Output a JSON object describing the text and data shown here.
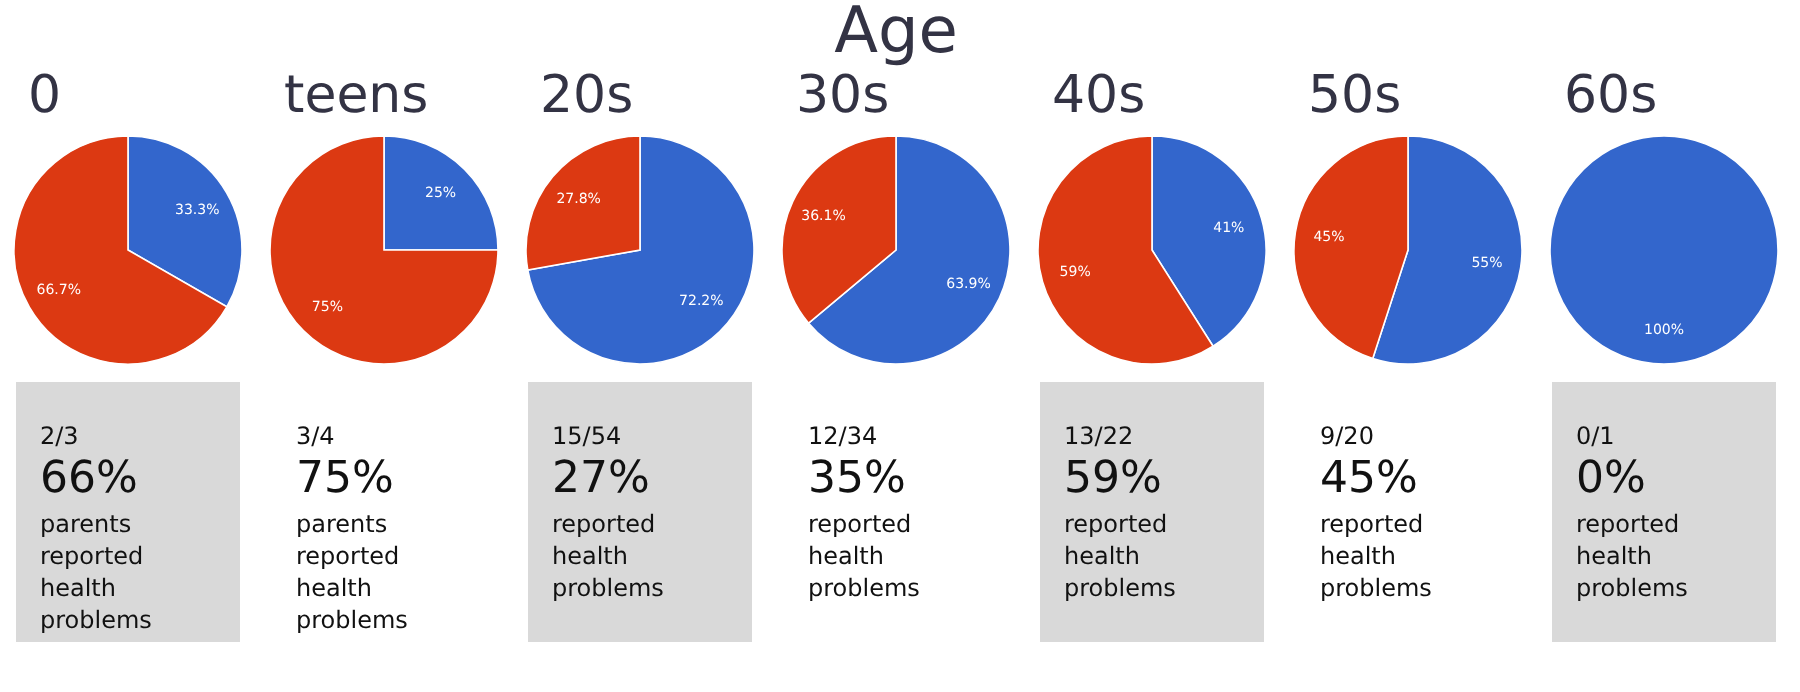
{
  "chart_data": [
    {
      "type": "other",
      "title": "Age"
    },
    {
      "type": "pie",
      "title": "0",
      "categories": [
        null,
        null
      ],
      "values": [
        33.3,
        66.7
      ],
      "colors": [
        "#3366cc",
        "#dc3912"
      ],
      "value_labels": [
        "33.3%",
        "66.7%"
      ],
      "annotations": [
        "2/3",
        "66%",
        "parents reported health problems"
      ]
    },
    {
      "type": "pie",
      "title": "teens",
      "categories": [
        null,
        null
      ],
      "values": [
        25,
        75
      ],
      "colors": [
        "#3366cc",
        "#dc3912"
      ],
      "value_labels": [
        "25%",
        "75%"
      ],
      "annotations": [
        "3/4",
        "75%",
        "parents reported health problems"
      ]
    },
    {
      "type": "pie",
      "title": "20s",
      "categories": [
        null,
        null
      ],
      "values": [
        72.2,
        27.8
      ],
      "colors": [
        "#3366cc",
        "#dc3912"
      ],
      "value_labels": [
        "72.2%",
        "27.8%"
      ],
      "annotations": [
        "15/54",
        "27%",
        "reported health problems"
      ]
    },
    {
      "type": "pie",
      "title": "30s",
      "categories": [
        null,
        null
      ],
      "values": [
        63.9,
        36.1
      ],
      "colors": [
        "#3366cc",
        "#dc3912"
      ],
      "value_labels": [
        "63.9%",
        "36.1%"
      ],
      "annotations": [
        "12/34",
        "35%",
        "reported health problems"
      ]
    },
    {
      "type": "pie",
      "title": "40s",
      "categories": [
        null,
        null
      ],
      "values": [
        41,
        59
      ],
      "colors": [
        "#3366cc",
        "#dc3912"
      ],
      "value_labels": [
        "41%",
        "59%"
      ],
      "annotations": [
        "13/22",
        "59%",
        "reported health problems"
      ]
    },
    {
      "type": "pie",
      "title": "50s",
      "categories": [
        null,
        null
      ],
      "values": [
        55,
        45
      ],
      "colors": [
        "#3366cc",
        "#dc3912"
      ],
      "value_labels": [
        "55%",
        "45%"
      ],
      "annotations": [
        "9/20",
        "45%",
        "reported health problems"
      ]
    },
    {
      "type": "pie",
      "title": "60s",
      "categories": [
        null
      ],
      "values": [
        100
      ],
      "colors": [
        "#3366cc"
      ],
      "value_labels": [
        "100%"
      ],
      "annotations": [
        "0/1",
        "0%",
        "reported health problems"
      ]
    }
  ]
}
